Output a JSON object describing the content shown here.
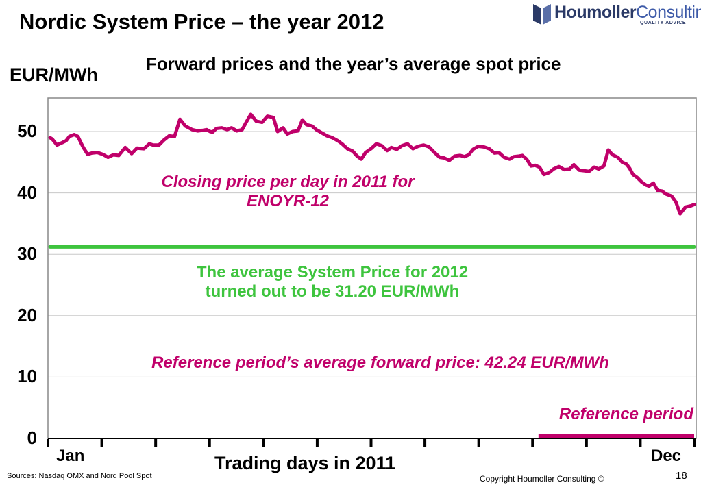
{
  "header": {
    "title": "Nordic System Price – the year 2012",
    "subtitle": "Forward prices and the year’s average spot price"
  },
  "logo": {
    "brand_bold": "Houmoller",
    "brand_light": "Consulting",
    "tagline": "QUALITY ADVICE",
    "icon": "houmoller-logo-icon"
  },
  "chart_data": {
    "type": "line",
    "ylabel": "EUR/MWh",
    "xlabel": "Trading days in 2011",
    "ylim": [
      0,
      55
    ],
    "yticks": [
      "0",
      "10",
      "20",
      "30",
      "40",
      "50"
    ],
    "xtick_labels": [
      "Jan",
      "Dec"
    ],
    "grid": "horizontal",
    "series": [
      {
        "name": "ENOYR-12",
        "color": "#c0006a",
        "x_month": [
          0.0,
          0.04,
          0.13,
          0.23,
          0.3,
          0.36,
          0.45,
          0.52,
          0.58,
          0.62,
          0.7,
          0.78,
          0.88,
          0.98,
          1.08,
          1.18,
          1.28,
          1.4,
          1.52,
          1.62,
          1.75,
          1.85,
          1.92,
          2.03,
          2.12,
          2.22,
          2.32,
          2.42,
          2.52,
          2.65,
          2.75,
          2.85,
          2.92,
          2.98,
          3.03,
          3.1,
          3.2,
          3.3,
          3.38,
          3.48,
          3.58,
          3.66,
          3.74,
          3.84,
          3.95,
          4.05,
          4.16,
          4.24,
          4.34,
          4.42,
          4.52,
          4.62,
          4.7,
          4.78,
          4.88,
          4.96,
          5.06,
          5.16,
          5.26,
          5.36,
          5.44,
          5.54,
          5.64,
          5.72,
          5.8,
          5.88,
          5.98,
          6.08,
          6.18,
          6.28,
          6.36,
          6.46,
          6.56,
          6.66,
          6.76,
          6.86,
          6.96,
          7.06,
          7.16,
          7.26,
          7.34,
          7.44,
          7.54,
          7.64,
          7.72,
          7.8,
          7.88,
          7.98,
          8.08,
          8.18,
          8.28,
          8.36,
          8.46,
          8.56,
          8.64,
          8.74,
          8.8,
          8.88,
          8.96,
          9.04,
          9.12,
          9.2,
          9.3,
          9.38,
          9.48,
          9.58,
          9.68,
          9.76,
          9.86,
          9.96,
          10.04,
          10.14,
          10.22,
          10.32,
          10.4,
          10.48,
          10.58,
          10.66,
          10.74,
          10.8,
          10.86,
          10.94,
          11.02,
          11.1,
          11.16,
          11.24,
          11.32,
          11.4,
          11.48,
          11.58,
          11.66,
          11.74,
          11.84,
          11.94,
          12.0
        ],
        "values": [
          49.0,
          48.8,
          47.8,
          48.2,
          48.5,
          49.2,
          49.5,
          49.2,
          48.1,
          47.4,
          46.3,
          46.5,
          46.6,
          46.3,
          45.8,
          46.2,
          46.1,
          47.4,
          46.4,
          47.3,
          47.2,
          48.0,
          47.8,
          47.8,
          48.6,
          49.3,
          49.2,
          52.0,
          50.9,
          50.3,
          50.1,
          50.2,
          50.3,
          50.0,
          49.9,
          50.5,
          50.6,
          50.3,
          50.6,
          50.1,
          50.3,
          51.6,
          52.8,
          51.7,
          51.5,
          52.5,
          52.3,
          50.0,
          50.6,
          49.6,
          50.0,
          50.1,
          51.9,
          51.1,
          50.9,
          50.3,
          49.8,
          49.3,
          49.0,
          48.5,
          48.0,
          47.2,
          46.8,
          46.0,
          45.5,
          46.6,
          47.2,
          48.0,
          47.7,
          46.9,
          47.4,
          47.1,
          47.7,
          48.0,
          47.2,
          47.6,
          47.8,
          47.5,
          46.6,
          45.8,
          45.7,
          45.3,
          46.0,
          46.1,
          45.9,
          46.2,
          47.1,
          47.6,
          47.5,
          47.2,
          46.5,
          46.6,
          45.8,
          45.5,
          45.9,
          46.0,
          46.1,
          45.5,
          44.4,
          44.5,
          44.2,
          43.0,
          43.3,
          43.9,
          44.3,
          43.8,
          43.9,
          44.6,
          43.7,
          43.6,
          43.5,
          44.2,
          43.9,
          44.4,
          47.0,
          46.2,
          45.8,
          45.0,
          44.7,
          44.0,
          43.0,
          42.5,
          41.8,
          41.3,
          41.1,
          41.6,
          40.4,
          40.3,
          39.8,
          39.5,
          38.5,
          36.6,
          37.7,
          37.9,
          38.1
        ]
      },
      {
        "name": "average System Price for 2012",
        "color": "#3ec43e",
        "x_month": [
          0,
          12
        ],
        "values": [
          31.2,
          31.2
        ]
      }
    ],
    "reference_period": {
      "label": "Reference period",
      "x_month_start": 9.1,
      "x_month_end": 12,
      "color": "#c0006a"
    },
    "annotations": {
      "closing_price_line1": "Closing price per day in 2011 for",
      "closing_price_line2": "ENOYR-12",
      "average_line1": "The average System Price for 2012",
      "average_line2": "turned out to be 31.20 EUR/MWh",
      "reference_average": "Reference period’s average forward price:  42.24 EUR/MWh",
      "reference_period": "Reference period"
    }
  },
  "footer": {
    "sources": "Sources: Nasdaq OMX and Nord Pool Spot",
    "copyright": "Copyright Houmoller Consulting ©",
    "page_number": "18"
  }
}
